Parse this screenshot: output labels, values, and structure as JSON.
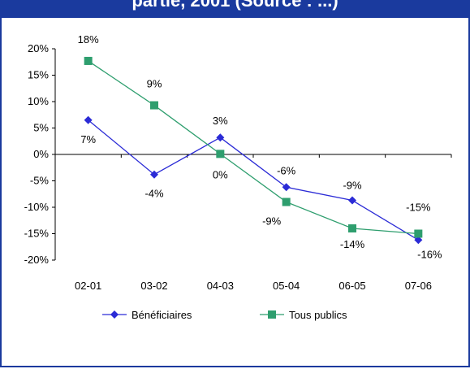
{
  "header": {
    "title_visible": "partie, 2001 (Source : ...)"
  },
  "chart_data": {
    "type": "line",
    "title": "",
    "xlabel": "",
    "ylabel": "",
    "categories": [
      "02-01",
      "03-02",
      "04-03",
      "05-04",
      "06-05",
      "07-06"
    ],
    "ylim": [
      -20,
      20
    ],
    "yticks": [
      20,
      15,
      10,
      5,
      0,
      -5,
      -10,
      -15,
      -20
    ],
    "ytick_labels": [
      "20%",
      "15%",
      "10%",
      "5%",
      "0%",
      "-5%",
      "-10%",
      "-15%",
      "-20%"
    ],
    "grid": false,
    "legend_position": "bottom",
    "series": [
      {
        "name": "Bénéficiaires",
        "values": [
          6.5,
          -3.8,
          3.2,
          -6.2,
          -8.7,
          -16.2
        ],
        "labels": [
          "7%",
          "-4%",
          "3%",
          "-6%",
          "-9%",
          "-16%"
        ],
        "color": "#2b2bd6",
        "marker": "diamond"
      },
      {
        "name": "Tous publics",
        "values": [
          17.7,
          9.3,
          0.1,
          -9.0,
          -14.0,
          -15.0
        ],
        "labels": [
          "18%",
          "9%",
          "0%",
          "-9%",
          "-14%",
          "-15%"
        ],
        "color": "#2e9e6e",
        "marker": "square"
      }
    ]
  }
}
